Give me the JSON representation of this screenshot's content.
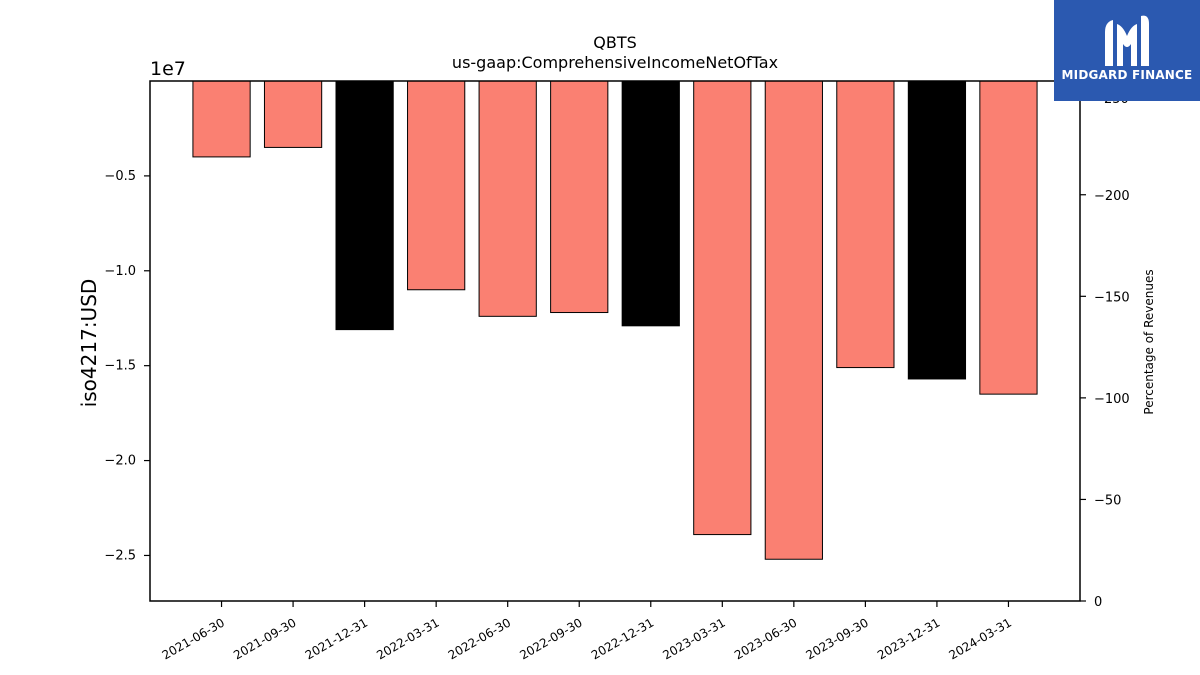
{
  "logo": {
    "text": "MIDGARD FINANCE",
    "icon": "midgard-logo-icon",
    "background": "#2b59b0"
  },
  "chart_data": {
    "type": "bar",
    "title": "QBTS",
    "subtitle": "us-gaap:ComprehensiveIncomeNetOfTax",
    "ylabel": "iso4217:USD",
    "y_offset_text": "1e7",
    "y2label": "Percentage of Revenues",
    "categories": [
      "2021-06-30",
      "2021-09-30",
      "2021-12-31",
      "2022-03-31",
      "2022-06-30",
      "2022-09-30",
      "2022-12-31",
      "2023-03-31",
      "2023-06-30",
      "2023-09-30",
      "2023-12-31",
      "2024-03-31"
    ],
    "values": [
      -4000000,
      -3500000,
      -13100000,
      -11000000,
      -12400000,
      -12200000,
      -12900000,
      -23900000,
      -25200000,
      -15100000,
      -15700000,
      -16500000
    ],
    "bar_colors": [
      "#fa8072",
      "#fa8072",
      "#000000",
      "#fa8072",
      "#fa8072",
      "#fa8072",
      "#000000",
      "#fa8072",
      "#fa8072",
      "#fa8072",
      "#000000",
      "#fa8072"
    ],
    "ylim": [
      -27400000,
      0
    ],
    "yticks": [
      -5000000,
      -10000000,
      -15000000,
      -20000000,
      -25000000
    ],
    "ytick_labels": [
      "−0.5",
      "−1.0",
      "−1.5",
      "−2.0",
      "−2.5"
    ],
    "y2lim": [
      0,
      -256
    ],
    "y2ticks": [
      -200,
      -150,
      -100,
      -50,
      0
    ],
    "y2tick_labels": [
      "−200",
      "−150",
      "−100",
      "−50",
      "0"
    ],
    "y2_partial_label": "250",
    "grid": false,
    "legend": "none"
  }
}
